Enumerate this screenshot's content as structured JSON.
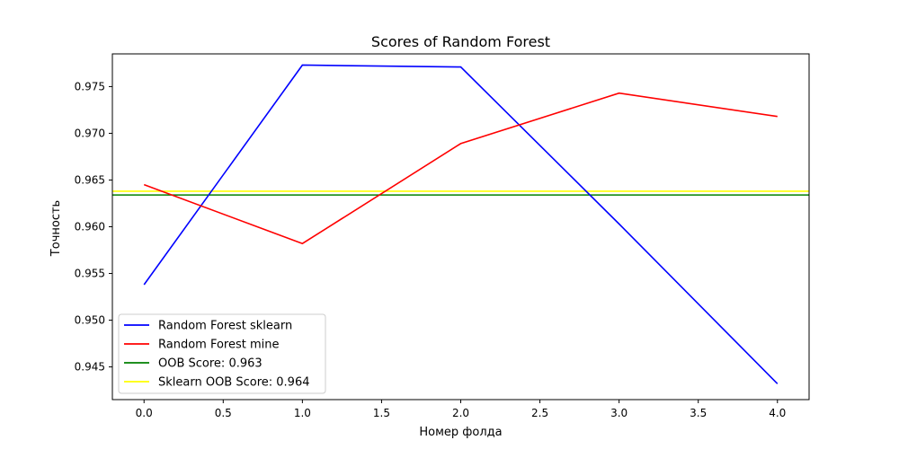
{
  "chart_data": {
    "type": "line",
    "title": "Scores of Random Forest",
    "xlabel": "Номер фолда",
    "ylabel": "Точность",
    "xlim": [
      -0.2,
      4.2
    ],
    "ylim": [
      0.9415,
      0.9785
    ],
    "xticks": [
      0.0,
      0.5,
      1.0,
      1.5,
      2.0,
      2.5,
      3.0,
      3.5,
      4.0
    ],
    "xtick_labels": [
      "0.0",
      "0.5",
      "1.0",
      "1.5",
      "2.0",
      "2.5",
      "3.0",
      "3.5",
      "4.0"
    ],
    "yticks": [
      0.945,
      0.95,
      0.955,
      0.96,
      0.965,
      0.97,
      0.975
    ],
    "ytick_labels": [
      "0.945",
      "0.950",
      "0.955",
      "0.960",
      "0.965",
      "0.970",
      "0.975"
    ],
    "grid": false,
    "legend_position": "lower-left",
    "series": [
      {
        "name": "Random Forest sklearn",
        "color": "#0000ff",
        "x": [
          0,
          1,
          2,
          3,
          4
        ],
        "y": [
          0.9538,
          0.9773,
          0.9771,
          0.9603,
          0.9432
        ]
      },
      {
        "name": "Random Forest mine",
        "color": "#ff0000",
        "x": [
          0,
          1,
          2,
          3,
          4
        ],
        "y": [
          0.9645,
          0.9582,
          0.9689,
          0.9743,
          0.9718
        ]
      }
    ],
    "hlines": [
      {
        "name": "OOB Score: 0.963",
        "color": "#008000",
        "y": 0.9634
      },
      {
        "name": "Sklearn OOB Score: 0.964",
        "color": "#ffff00",
        "y": 0.9638
      }
    ]
  }
}
